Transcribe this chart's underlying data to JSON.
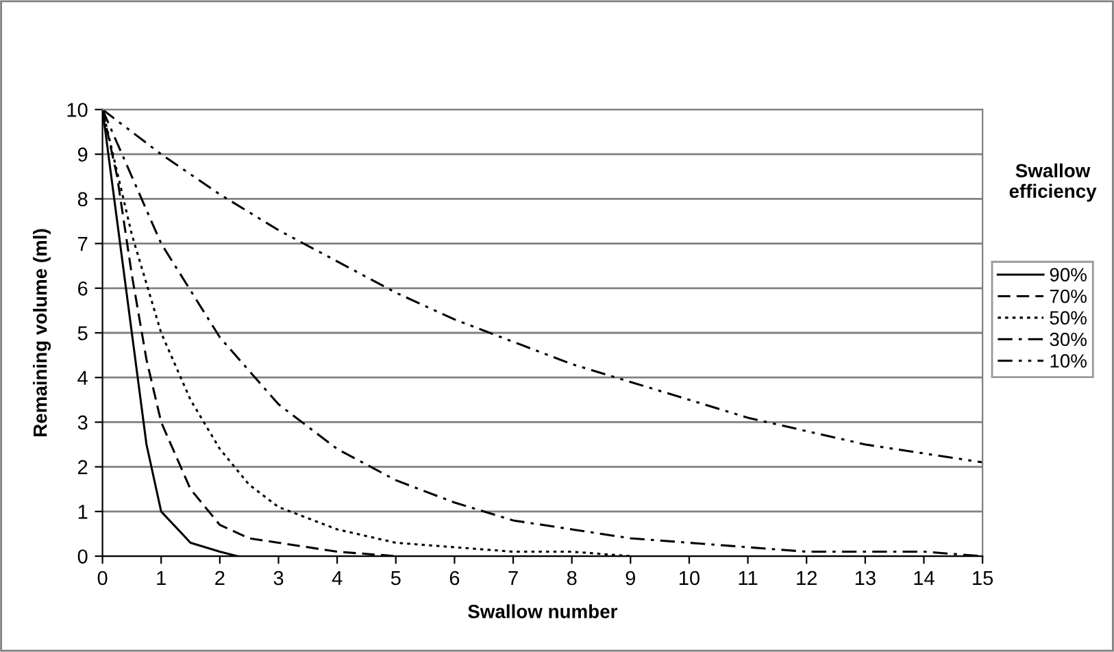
{
  "chart_data": {
    "type": "line",
    "xlabel": "Swallow number",
    "ylabel": "Remaining volume (ml)",
    "legend_title": "Swallow efficiency",
    "x": [
      0,
      1,
      2,
      3,
      4,
      5,
      6,
      7,
      8,
      9,
      10,
      11,
      12,
      13,
      14,
      15
    ],
    "series": [
      {
        "name": "90%",
        "color": "#000000",
        "line_style": "solid",
        "x": [
          0,
          0.25,
          0.5,
          0.75,
          1,
          1.5,
          2,
          2.3
        ],
        "values": [
          10,
          7.5,
          5,
          2.5,
          1,
          0.3,
          0.1,
          0
        ]
      },
      {
        "name": "70%",
        "color": "#000000",
        "line_style": "dashed",
        "x": [
          0,
          0.25,
          0.5,
          0.75,
          1,
          1.5,
          2,
          2.5,
          3,
          4,
          5
        ],
        "values": [
          10,
          8.5,
          6.3,
          4.4,
          3,
          1.5,
          0.7,
          0.4,
          0.3,
          0.1,
          0
        ]
      },
      {
        "name": "50%",
        "color": "#000000",
        "line_style": "dotted",
        "x": [
          0,
          0.5,
          1,
          1.5,
          2,
          2.5,
          3,
          4,
          5,
          6,
          7,
          8,
          9
        ],
        "values": [
          10,
          7.2,
          5,
          3.5,
          2.4,
          1.6,
          1.1,
          0.6,
          0.3,
          0.2,
          0.1,
          0.1,
          0
        ]
      },
      {
        "name": "30%",
        "color": "#000000",
        "line_style": "dashdot",
        "values": [
          10,
          7,
          4.9,
          3.4,
          2.4,
          1.7,
          1.2,
          0.8,
          0.6,
          0.4,
          0.3,
          0.2,
          0.1,
          0.1,
          0.1,
          0
        ]
      },
      {
        "name": "10%",
        "color": "#000000",
        "line_style": "dashdotdot",
        "values": [
          10,
          9,
          8.1,
          7.3,
          6.6,
          5.9,
          5.3,
          4.8,
          4.3,
          3.9,
          3.5,
          3.1,
          2.8,
          2.5,
          2.3,
          2.1
        ]
      }
    ],
    "xlim": [
      0,
      15
    ],
    "xticks": [
      0,
      1,
      2,
      3,
      4,
      5,
      6,
      7,
      8,
      9,
      10,
      11,
      12,
      13,
      14,
      15
    ],
    "ylim": [
      0,
      10
    ],
    "yticks": [
      0,
      1,
      2,
      3,
      4,
      5,
      6,
      7,
      8,
      9,
      10
    ],
    "grid": "y",
    "legend": "right",
    "marker": "none"
  }
}
